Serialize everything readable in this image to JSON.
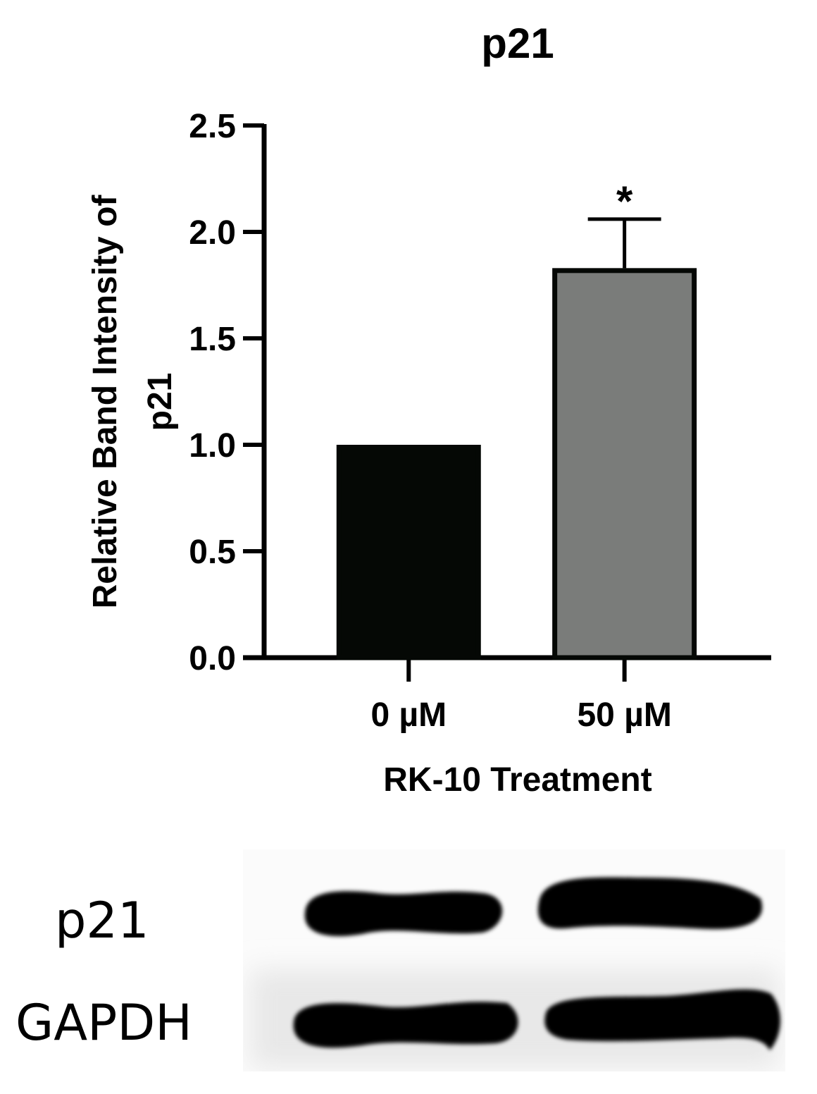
{
  "chart_data": {
    "type": "bar",
    "title": "p21",
    "xlabel": "RK-10 Treatment",
    "ylabel_lines": [
      "Relative Band Intensity of",
      "p21"
    ],
    "categories": [
      "0 µM",
      "50 µM"
    ],
    "values": [
      1.0,
      1.83
    ],
    "error_upper": [
      null,
      2.06
    ],
    "significance": [
      "",
      "*"
    ],
    "ylim": [
      0,
      2.5
    ],
    "yticks": [
      "0.0",
      "0.5",
      "1.0",
      "1.5",
      "2.0",
      "2.5"
    ],
    "grid": false,
    "colors": {
      "0 µM": "#050805",
      "50 µM": "#7a7c7a"
    }
  },
  "blot": {
    "labels": [
      "p21",
      "GAPDH"
    ]
  }
}
